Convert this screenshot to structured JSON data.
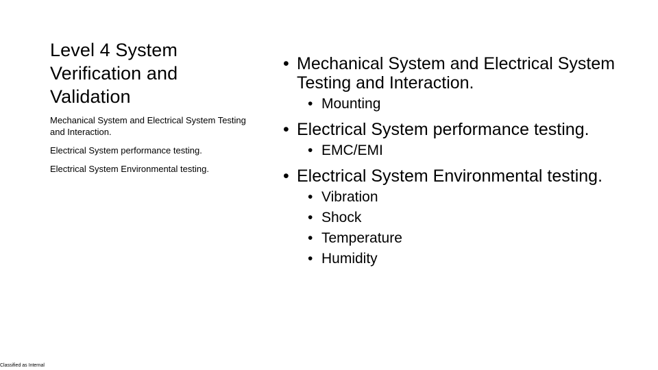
{
  "left": {
    "title_lines": [
      "Level 4 System",
      "Verification and",
      "Validation"
    ],
    "summary": [
      "Mechanical System and Electrical System Testing and Interaction.",
      "Electrical System performance testing.",
      "Electrical System Environmental testing."
    ]
  },
  "right": {
    "bullet_glyph": "•",
    "items": [
      {
        "label": "Mechanical System and Electrical System Testing and Interaction.",
        "sub": [
          "Mounting"
        ]
      },
      {
        "label": "Electrical System performance testing.",
        "sub": [
          "EMC/EMI"
        ]
      },
      {
        "label": "Electrical System Environmental testing.",
        "sub": [
          "Vibration",
          "Shock",
          "Temperature",
          "Humidity"
        ]
      }
    ]
  },
  "footer": {
    "classification": "Classified as Internal"
  }
}
